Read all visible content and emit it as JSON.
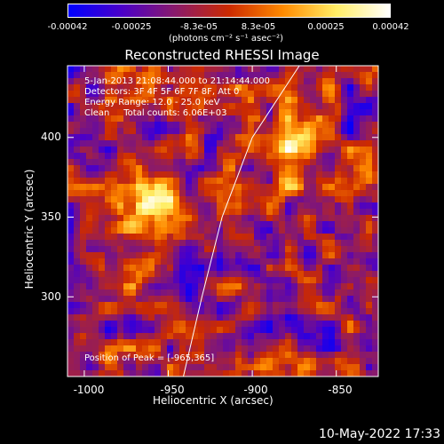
{
  "colorbar": {
    "ticks": [
      "-0.00042",
      "-0.00025",
      "-8.3e-05",
      "8.3e-05",
      "0.00025",
      "0.00042"
    ],
    "tick_values": [
      -0.00042,
      -0.00025,
      -8.3e-05,
      8.3e-05,
      0.00025,
      0.00042
    ],
    "units": "(photons cm⁻² s⁻¹ asec⁻²)"
  },
  "chart_data": {
    "type": "heatmap",
    "title": "Reconstructed RHESSI Image",
    "xlabel": "Heliocentric X (arcsec)",
    "ylabel": "Heliocentric Y (arcsec)",
    "xlim": [
      -1010,
      -825
    ],
    "ylim": [
      250,
      445
    ],
    "xticks": [
      -1000,
      -950,
      -900,
      -850
    ],
    "xtick_labels": [
      "-1000",
      "-950",
      "-900",
      "-850"
    ],
    "yticks": [
      300,
      350,
      400
    ],
    "ytick_labels": [
      "300",
      "350",
      "400"
    ],
    "colorscale": [
      "#0000ff",
      "#4b00c8",
      "#8a1a6a",
      "#cc2a00",
      "#ff8a00",
      "#ffee66",
      "#ffffff"
    ],
    "limb": [
      [
        -941,
        250
      ],
      [
        -930,
        300
      ],
      [
        -918,
        350
      ],
      [
        -900,
        400
      ],
      [
        -872,
        445
      ]
    ],
    "peak": [
      -965,
      365
    ]
  },
  "annotations": {
    "time": "5-Jan-2013 21:08:44.000 to 21:14:44.000",
    "detectors": "Detectors: 3F 4F 5F 6F 7F 8F, Att 0",
    "energy": "Energy Range: 12.0 - 25.0 keV",
    "method": "Clean     Total counts: 6.06E+03",
    "peak": "Position of Peak = [-965,365]"
  },
  "timestamp": "10-May-2022 17:33"
}
